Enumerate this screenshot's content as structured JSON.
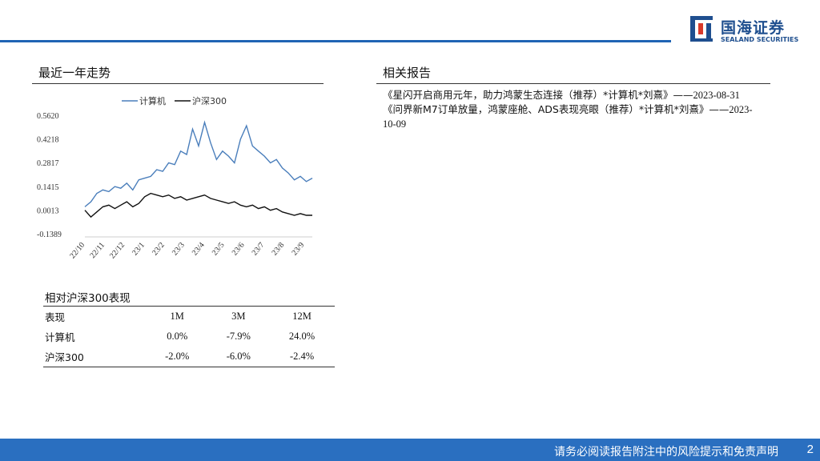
{
  "brand": {
    "name_cn": "国海证券",
    "name_en": "SEALAND SECURITIES",
    "color": "#1f4f8f"
  },
  "left_section": {
    "title": "最近一年走势"
  },
  "right_section": {
    "title": "相关报告",
    "reports": [
      {
        "text": "《星闪开启商用元年，助力鸿蒙生态连接（推荐）*计算机*刘熹》——",
        "date": "2023-08-31"
      },
      {
        "text": "《问界新M7订单放量，鸿蒙座舱、ADS表现亮眼（推荐）*计算机*刘熹》——",
        "date": "2023-10-09"
      }
    ]
  },
  "chart_data": {
    "type": "line",
    "legend": [
      "计算机",
      "沪深300"
    ],
    "legend_position": "top",
    "yticks": [
      "0.5620",
      "0.4218",
      "0.2817",
      "0.1415",
      "0.0013",
      "-0.1389"
    ],
    "ylim": [
      -0.1389,
      0.562
    ],
    "xticks": [
      "22/10",
      "22/11",
      "22/12",
      "23/1",
      "23/2",
      "23/3",
      "23/4",
      "23/5",
      "23/6",
      "23/7",
      "23/8",
      "23/9"
    ],
    "grid": false,
    "series": [
      {
        "name": "计算机",
        "color": "#4a7ebb",
        "x": [
          0,
          0.3,
          0.6,
          0.9,
          1.2,
          1.5,
          1.8,
          2.1,
          2.4,
          2.7,
          3.0,
          3.3,
          3.6,
          3.9,
          4.2,
          4.5,
          4.8,
          5.1,
          5.4,
          5.7,
          6.0,
          6.3,
          6.6,
          6.9,
          7.2,
          7.5,
          7.8,
          8.1,
          8.4,
          8.7,
          9.0,
          9.3,
          9.6,
          9.9,
          10.2,
          10.5,
          10.8,
          11.1,
          11.4
        ],
        "values": [
          0.02,
          0.05,
          0.1,
          0.12,
          0.11,
          0.14,
          0.13,
          0.16,
          0.12,
          0.18,
          0.19,
          0.2,
          0.24,
          0.23,
          0.28,
          0.27,
          0.35,
          0.33,
          0.48,
          0.38,
          0.52,
          0.4,
          0.3,
          0.35,
          0.32,
          0.28,
          0.42,
          0.5,
          0.38,
          0.35,
          0.32,
          0.28,
          0.3,
          0.25,
          0.22,
          0.18,
          0.2,
          0.17,
          0.19
        ]
      },
      {
        "name": "沪深300",
        "color": "#111111",
        "x": [
          0,
          0.3,
          0.6,
          0.9,
          1.2,
          1.5,
          1.8,
          2.1,
          2.4,
          2.7,
          3.0,
          3.3,
          3.6,
          3.9,
          4.2,
          4.5,
          4.8,
          5.1,
          5.4,
          5.7,
          6.0,
          6.3,
          6.6,
          6.9,
          7.2,
          7.5,
          7.8,
          8.1,
          8.4,
          8.7,
          9.0,
          9.3,
          9.6,
          9.9,
          10.2,
          10.5,
          10.8,
          11.1,
          11.4
        ],
        "values": [
          0.0,
          -0.04,
          -0.01,
          0.02,
          0.03,
          0.01,
          0.03,
          0.05,
          0.02,
          0.04,
          0.08,
          0.1,
          0.09,
          0.08,
          0.09,
          0.07,
          0.08,
          0.06,
          0.07,
          0.08,
          0.09,
          0.07,
          0.06,
          0.05,
          0.04,
          0.05,
          0.03,
          0.02,
          0.03,
          0.01,
          0.02,
          0.0,
          0.01,
          -0.01,
          -0.02,
          -0.03,
          -0.02,
          -0.03,
          -0.03
        ]
      }
    ]
  },
  "performance": {
    "title": "相对沪深300表现",
    "headers": [
      "表现",
      "1M",
      "3M",
      "12M"
    ],
    "rows": [
      [
        "计算机",
        "0.0%",
        "-7.9%",
        "24.0%"
      ],
      [
        "沪深300",
        "-2.0%",
        "-6.0%",
        "-2.4%"
      ]
    ]
  },
  "footer": {
    "disclaimer": "请务必阅读报告附注中的风险提示和免责声明",
    "page": "2"
  }
}
